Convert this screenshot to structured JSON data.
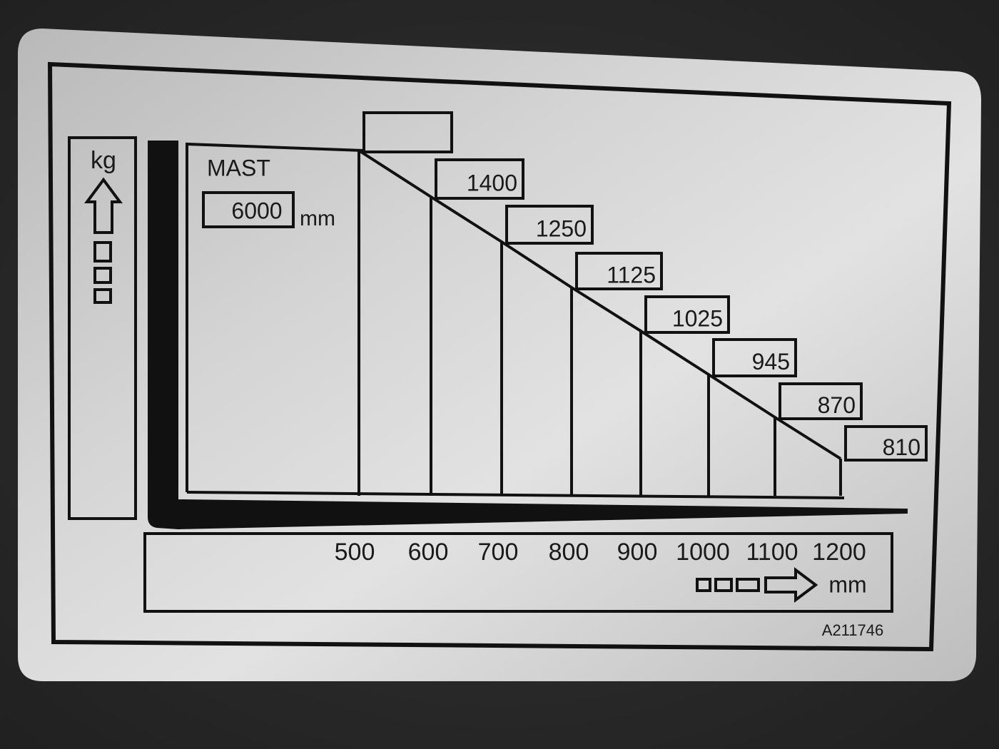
{
  "plate": {
    "y_unit": "kg",
    "mast_label": "MAST",
    "mast_height": "6000",
    "mast_unit": "mm",
    "capacities": [
      null,
      "1400",
      "1250",
      "1125",
      "1025",
      "945",
      "870",
      "810"
    ],
    "load_centers": [
      "500",
      "600",
      "700",
      "800",
      "900",
      "1000",
      "1100",
      "1200"
    ],
    "x_unit": "mm",
    "part_number": "A211746"
  }
}
